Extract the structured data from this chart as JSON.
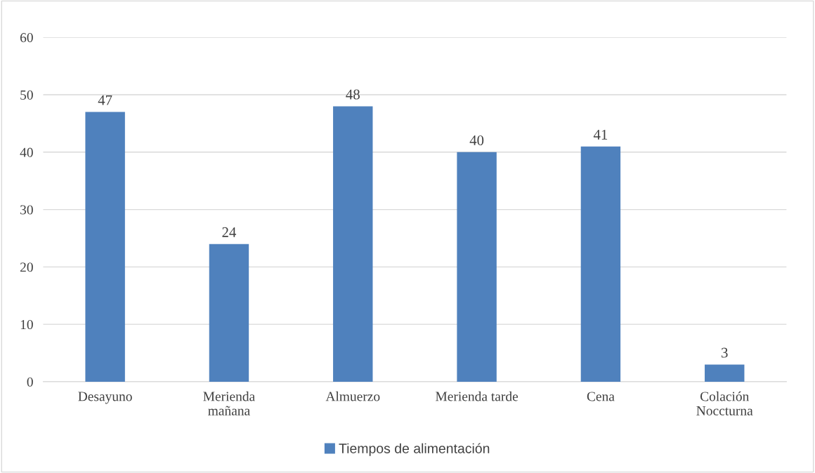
{
  "chart_data": {
    "type": "bar",
    "categories": [
      "Desayuno",
      "Merienda\nmañana",
      "Almuerzo",
      "Merienda tarde",
      "Cena",
      "Colación\nNoccturna"
    ],
    "series": [
      {
        "name": "Tiempos de alimentación",
        "color": "#4f81bd",
        "values": [
          47,
          24,
          48,
          40,
          41,
          3
        ]
      }
    ],
    "ylim": [
      0,
      60
    ],
    "yticks": [
      0,
      10,
      20,
      30,
      40,
      50,
      60
    ],
    "grid": "y",
    "legend": "bottom",
    "data_labels": true
  }
}
